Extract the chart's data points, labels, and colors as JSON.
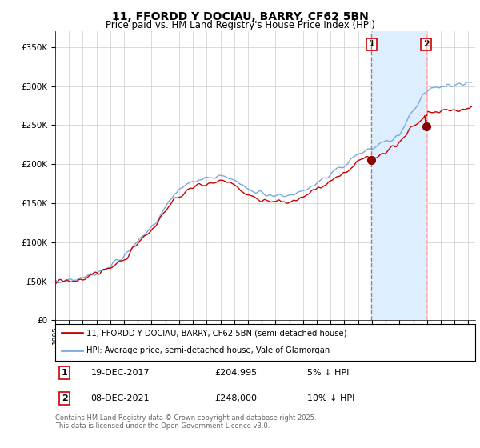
{
  "title": "11, FFORDD Y DOCIAU, BARRY, CF62 5BN",
  "subtitle": "Price paid vs. HM Land Registry's House Price Index (HPI)",
  "ylabel_ticks": [
    "£0",
    "£50K",
    "£100K",
    "£150K",
    "£200K",
    "£250K",
    "£300K",
    "£350K"
  ],
  "ylim": [
    0,
    370000
  ],
  "xlim_start": 1995.0,
  "xlim_end": 2025.5,
  "legend_line1": "11, FFORDD Y DOCIAU, BARRY, CF62 5BN (semi-detached house)",
  "legend_line2": "HPI: Average price, semi-detached house, Vale of Glamorgan",
  "annotation1_date": "19-DEC-2017",
  "annotation1_price": "£204,995",
  "annotation1_note": "5% ↓ HPI",
  "annotation2_date": "08-DEC-2021",
  "annotation2_price": "£248,000",
  "annotation2_note": "10% ↓ HPI",
  "sale1_x": 2017.96,
  "sale1_y": 204995,
  "sale2_x": 2021.94,
  "sale2_y": 248000,
  "footer": "Contains HM Land Registry data © Crown copyright and database right 2025.\nThis data is licensed under the Open Government Licence v3.0.",
  "line_color_price": "#cc0000",
  "line_color_hpi": "#7aaadd",
  "shade_color": "#ddeeff",
  "vline1_color": "#888888",
  "vline2_color": "#ffaaaa",
  "background_color": "#ffffff",
  "plot_bg_color": "#ffffff",
  "grid_color": "#cccccc"
}
